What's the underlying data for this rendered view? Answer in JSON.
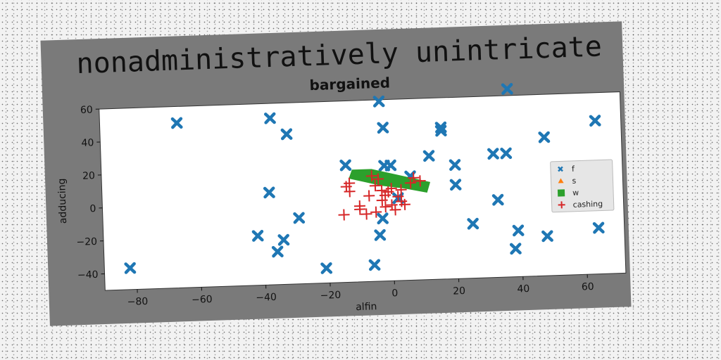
{
  "header": {
    "banner_title": "nonadministratively unintricate"
  },
  "colors": {
    "panel": "#7a7a7a",
    "plot_bg": "#ffffff",
    "f": "#1f77b4",
    "s": "#ff7f0e",
    "w": "#2ca02c",
    "cashing": "#d62728"
  },
  "chart_data": {
    "type": "scatter",
    "title": "bargained",
    "xlabel": "alfin",
    "ylabel": "adducing",
    "xlim": [
      -90,
      72
    ],
    "ylim": [
      -50,
      60
    ],
    "xticks": [
      -80,
      -60,
      -40,
      -20,
      0,
      20,
      40,
      60
    ],
    "yticks": [
      -40,
      -20,
      0,
      20,
      40,
      60
    ],
    "grid": false,
    "legend_position": "right",
    "series": [
      {
        "name": "f",
        "marker": "x",
        "points": [
          [
            -82,
            -37
          ],
          [
            -66,
            50
          ],
          [
            -42,
            -20
          ],
          [
            -38,
            6
          ],
          [
            -37,
            51
          ],
          [
            -36,
            -30
          ],
          [
            -34,
            -23
          ],
          [
            -32,
            41
          ],
          [
            -29,
            -10
          ],
          [
            -21,
            -41
          ],
          [
            -14,
            21
          ],
          [
            -6,
            -40
          ],
          [
            -4,
            -22
          ],
          [
            -3,
            -12
          ],
          [
            -3,
            59
          ],
          [
            -2,
            43
          ],
          [
            -2,
            20
          ],
          [
            0,
            20
          ],
          [
            2,
            0
          ],
          [
            6,
            13
          ],
          [
            12,
            25
          ],
          [
            16,
            42
          ],
          [
            16,
            40
          ],
          [
            20,
            19
          ],
          [
            20,
            7
          ],
          [
            25,
            -17
          ],
          [
            32,
            25
          ],
          [
            33,
            -3
          ],
          [
            36,
            25
          ],
          [
            37,
            64
          ],
          [
            38,
            -33
          ],
          [
            39,
            -22
          ],
          [
            48,
            -26
          ],
          [
            48,
            34
          ],
          [
            64,
            43
          ],
          [
            64,
            -22
          ]
        ]
      },
      {
        "name": "s",
        "marker": "^",
        "points": []
      },
      {
        "name": "w",
        "marker": "s",
        "polygon": [
          [
            -12,
            18
          ],
          [
            -6,
            18
          ],
          [
            0,
            15
          ],
          [
            8,
            11
          ],
          [
            12,
            9
          ],
          [
            11,
            3
          ],
          [
            4,
            6
          ],
          [
            -3,
            8
          ],
          [
            -9,
            11
          ],
          [
            -13,
            13
          ]
        ]
      },
      {
        "name": "cashing",
        "marker": "+",
        "points": [
          [
            -15,
            -9
          ],
          [
            -14,
            8
          ],
          [
            -13,
            10
          ],
          [
            -13,
            5
          ],
          [
            -10,
            -4
          ],
          [
            -10,
            -6
          ],
          [
            -8,
            -9
          ],
          [
            -7,
            2
          ],
          [
            -6,
            14
          ],
          [
            -5,
            8
          ],
          [
            -5,
            -8
          ],
          [
            -4,
            12
          ],
          [
            -3,
            5
          ],
          [
            -3,
            -1
          ],
          [
            -2,
            2
          ],
          [
            -2,
            -5
          ],
          [
            -1,
            4
          ],
          [
            0,
            6
          ],
          [
            0,
            -4
          ],
          [
            1,
            -7
          ],
          [
            2,
            1
          ],
          [
            3,
            5
          ],
          [
            3,
            -2
          ],
          [
            4,
            -4
          ],
          [
            6,
            9
          ],
          [
            7,
            12
          ],
          [
            9,
            10
          ]
        ]
      }
    ]
  }
}
